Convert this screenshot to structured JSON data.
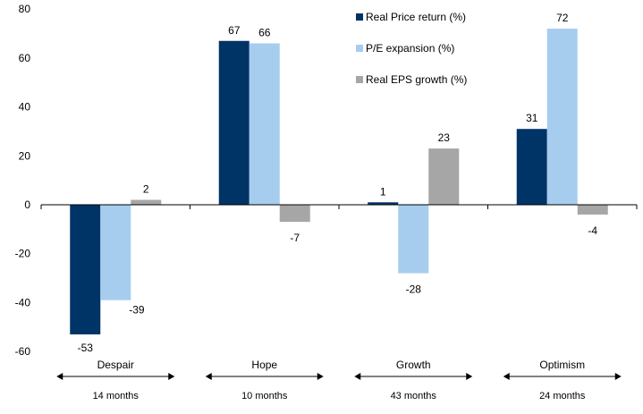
{
  "chart_data": {
    "type": "bar",
    "categories": [
      "Despair",
      "Hope",
      "Growth",
      "Optimism"
    ],
    "durations": [
      "14 months",
      "10 months",
      "43 months",
      "24 months"
    ],
    "series": [
      {
        "name": "Real Price return (%)",
        "color": "#003366",
        "values": [
          -53,
          67,
          1,
          31
        ]
      },
      {
        "name": "P/E expansion (%)",
        "color": "#a6cdee",
        "values": [
          -39,
          66,
          -28,
          72
        ]
      },
      {
        "name": "Real EPS growth (%)",
        "color": "#a6a6a6",
        "values": [
          2,
          -7,
          23,
          -4
        ]
      }
    ],
    "data_labels": [
      [
        "-53",
        "67",
        "1",
        "31"
      ],
      [
        "-39",
        "66",
        "-28",
        "72"
      ],
      [
        "2",
        "-7",
        "23",
        "-4"
      ]
    ],
    "yticks": [
      "80",
      "60",
      "40",
      "20",
      "0",
      "-20",
      "-40",
      "-60"
    ],
    "ytick_values": [
      80,
      60,
      40,
      20,
      0,
      -20,
      -40,
      -60
    ],
    "ylim": [
      -60,
      80
    ],
    "title": "",
    "xlabel": "",
    "ylabel": "",
    "legend_position": "top-right"
  }
}
